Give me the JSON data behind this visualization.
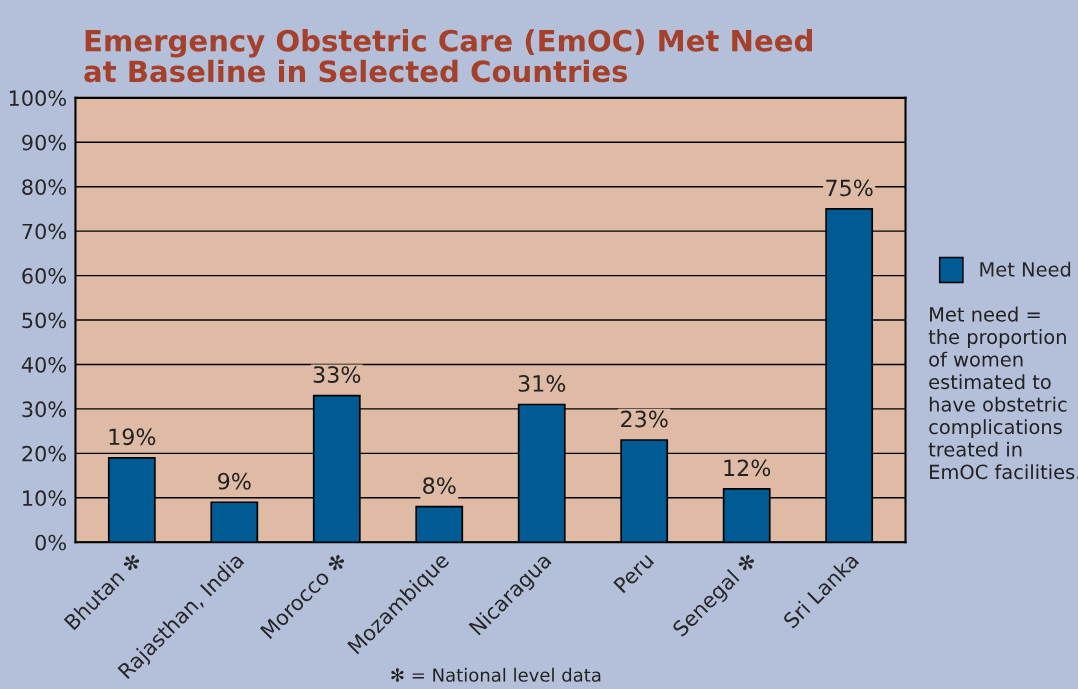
{
  "chart_data": {
    "type": "bar",
    "title": "Emergency Obstetric Care (EmOC) Met Need\nat Baseline in Selected Countries",
    "categories": [
      "Bhutan ✻",
      "Rajasthan, India",
      "Morocco ✻",
      "Mozambique",
      "Nicaragua",
      "Peru",
      "Senegal ✻",
      "Sri Lanka"
    ],
    "series": [
      {
        "name": "Met Need",
        "color": "#005a94",
        "values": [
          19,
          9,
          33,
          8,
          31,
          23,
          12,
          75
        ]
      }
    ],
    "value_labels": [
      "19%",
      "9%",
      "33%",
      "8%",
      "31%",
      "23%",
      "12%",
      "75%"
    ],
    "ylim": [
      0,
      100
    ],
    "yticks": [
      {
        "value": 0,
        "label": "0%"
      },
      {
        "value": 10,
        "label": "10%"
      },
      {
        "value": 20,
        "label": "20%"
      },
      {
        "value": 30,
        "label": "30%"
      },
      {
        "value": 40,
        "label": "40%"
      },
      {
        "value": 50,
        "label": "50%"
      },
      {
        "value": 60,
        "label": "60%"
      },
      {
        "value": 70,
        "label": "70%"
      },
      {
        "value": 80,
        "label": "80%"
      },
      {
        "value": 90,
        "label": "90%"
      },
      {
        "value": 100,
        "label": "100%"
      }
    ],
    "grid": "y",
    "legend": "right",
    "annotations": [
      "Met need =\nthe proportion\nof women\nestimated to\nhave obstetric\ncomplications\ntreated in\nEmOC facilities.",
      "✻ = National level data"
    ]
  }
}
